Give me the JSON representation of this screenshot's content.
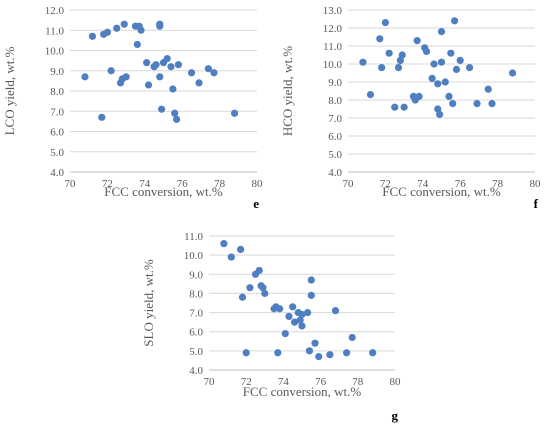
{
  "colors": {
    "marker": "#4f7fc0",
    "grid": "#d9d9d9",
    "text": "#595959"
  },
  "chart_data": [
    {
      "type": "scatter",
      "panel_label": "e",
      "xlabel": "FCC conversion, wt.%",
      "ylabel": "LCO yield, wt.%",
      "xlim": [
        70,
        80
      ],
      "ylim": [
        4.0,
        12.0
      ],
      "xticks": [
        "70",
        "72",
        "74",
        "76",
        "78",
        "80"
      ],
      "yticks": [
        "4.0",
        "5.0",
        "6.0",
        "7.0",
        "8.0",
        "9.0",
        "10.0",
        "11.0",
        "12.0"
      ],
      "grid": "horizontal",
      "points": [
        [
          70.8,
          8.7
        ],
        [
          71.2,
          10.7
        ],
        [
          71.7,
          6.7
        ],
        [
          71.8,
          10.8
        ],
        [
          72.0,
          10.9
        ],
        [
          72.2,
          9.0
        ],
        [
          72.5,
          11.1
        ],
        [
          72.7,
          8.4
        ],
        [
          72.8,
          8.6
        ],
        [
          72.9,
          11.3
        ],
        [
          73.0,
          8.7
        ],
        [
          73.5,
          11.2
        ],
        [
          73.6,
          10.3
        ],
        [
          73.7,
          11.2
        ],
        [
          73.8,
          11.0
        ],
        [
          74.1,
          9.4
        ],
        [
          74.2,
          8.3
        ],
        [
          74.5,
          9.2
        ],
        [
          74.6,
          9.3
        ],
        [
          74.8,
          11.2
        ],
        [
          74.8,
          11.3
        ],
        [
          74.8,
          8.7
        ],
        [
          74.9,
          7.1
        ],
        [
          75.0,
          9.4
        ],
        [
          75.2,
          9.6
        ],
        [
          75.4,
          9.2
        ],
        [
          75.5,
          8.1
        ],
        [
          75.6,
          6.9
        ],
        [
          75.7,
          6.6
        ],
        [
          75.8,
          9.3
        ],
        [
          76.5,
          8.9
        ],
        [
          76.9,
          8.4
        ],
        [
          77.4,
          9.1
        ],
        [
          77.7,
          8.9
        ],
        [
          78.8,
          6.9
        ]
      ]
    },
    {
      "type": "scatter",
      "panel_label": "f",
      "xlabel": "FCC conversion, wt.%",
      "ylabel": "HCO yield, wt.%",
      "xlim": [
        70,
        80
      ],
      "ylim": [
        4.0,
        13.0
      ],
      "xticks": [
        "70",
        "72",
        "74",
        "76",
        "78",
        "80"
      ],
      "yticks": [
        "4.0",
        "5.0",
        "6.0",
        "7.0",
        "8.0",
        "9.0",
        "10.0",
        "11.0",
        "12.0",
        "13.0"
      ],
      "grid": "horizontal",
      "points": [
        [
          70.8,
          10.1
        ],
        [
          71.2,
          8.3
        ],
        [
          71.7,
          11.4
        ],
        [
          71.8,
          9.8
        ],
        [
          72.0,
          12.3
        ],
        [
          72.2,
          10.6
        ],
        [
          72.5,
          7.6
        ],
        [
          72.7,
          9.8
        ],
        [
          72.8,
          10.2
        ],
        [
          72.9,
          10.5
        ],
        [
          73.0,
          7.6
        ],
        [
          73.5,
          8.2
        ],
        [
          73.6,
          8.0
        ],
        [
          73.7,
          11.3
        ],
        [
          73.8,
          8.2
        ],
        [
          74.1,
          10.9
        ],
        [
          74.2,
          10.7
        ],
        [
          74.5,
          9.2
        ],
        [
          74.6,
          10.0
        ],
        [
          74.8,
          8.9
        ],
        [
          74.8,
          7.5
        ],
        [
          74.9,
          7.2
        ],
        [
          75.0,
          11.8
        ],
        [
          75.0,
          10.1
        ],
        [
          75.2,
          9.0
        ],
        [
          75.4,
          8.2
        ],
        [
          75.5,
          10.6
        ],
        [
          75.6,
          7.8
        ],
        [
          75.7,
          12.4
        ],
        [
          75.8,
          9.7
        ],
        [
          76.0,
          10.2
        ],
        [
          76.5,
          9.8
        ],
        [
          76.9,
          7.8
        ],
        [
          77.5,
          8.6
        ],
        [
          77.7,
          7.8
        ],
        [
          78.8,
          9.5
        ]
      ]
    },
    {
      "type": "scatter",
      "panel_label": "g",
      "xlabel": "FCC conversion, wt.%",
      "ylabel": "SLO yield, wt.%",
      "xlim": [
        70,
        80
      ],
      "ylim": [
        4.0,
        11.0
      ],
      "xticks": [
        "70",
        "72",
        "74",
        "76",
        "78",
        "80"
      ],
      "yticks": [
        "4.0",
        "5.0",
        "6.0",
        "7.0",
        "8.0",
        "9.0",
        "10.0",
        "11.0"
      ],
      "grid": "horizontal",
      "points": [
        [
          70.8,
          10.6
        ],
        [
          71.2,
          9.9
        ],
        [
          71.7,
          10.3
        ],
        [
          71.8,
          7.8
        ],
        [
          72.0,
          4.9
        ],
        [
          72.2,
          8.3
        ],
        [
          72.5,
          9.0
        ],
        [
          72.7,
          9.2
        ],
        [
          72.8,
          8.4
        ],
        [
          72.9,
          8.3
        ],
        [
          73.0,
          8.0
        ],
        [
          73.5,
          7.2
        ],
        [
          73.6,
          7.3
        ],
        [
          73.7,
          4.9
        ],
        [
          73.8,
          7.2
        ],
        [
          74.1,
          5.9
        ],
        [
          74.3,
          6.8
        ],
        [
          74.5,
          7.3
        ],
        [
          74.6,
          6.5
        ],
        [
          74.8,
          7.0
        ],
        [
          74.9,
          6.6
        ],
        [
          75.0,
          6.3
        ],
        [
          75.0,
          6.9
        ],
        [
          75.3,
          7.0
        ],
        [
          75.4,
          5.0
        ],
        [
          75.5,
          8.7
        ],
        [
          75.5,
          7.9
        ],
        [
          75.7,
          5.4
        ],
        [
          75.9,
          4.7
        ],
        [
          76.5,
          4.8
        ],
        [
          76.8,
          7.1
        ],
        [
          77.4,
          4.9
        ],
        [
          77.7,
          5.7
        ],
        [
          78.8,
          4.9
        ]
      ]
    }
  ]
}
